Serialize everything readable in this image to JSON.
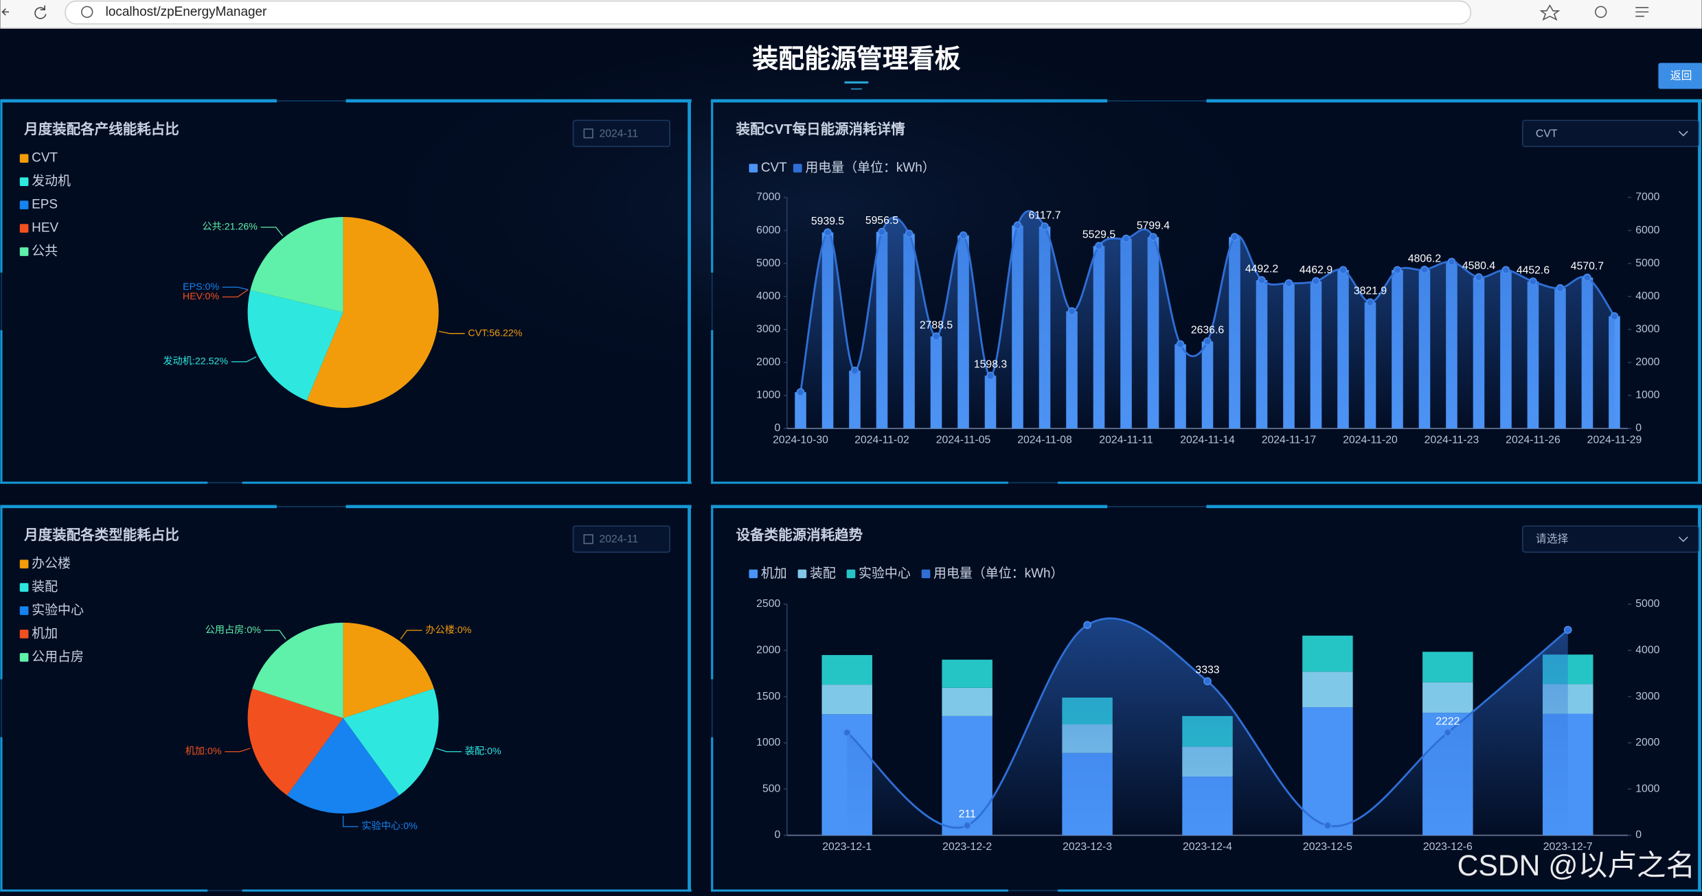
{
  "browser": {
    "url": "localhost/zpEnergyManager"
  },
  "header": {
    "title": "装配能源管理看板",
    "back_button": "返回"
  },
  "watermark": "CSDN @以卢之名",
  "chart_data": [
    {
      "type": "pie",
      "title": "月度装配各产线能耗占比",
      "date": "2024-11",
      "categories": [
        "CVT",
        "发动机",
        "EPS",
        "HEV",
        "公共"
      ],
      "values": [
        56.22,
        22.52,
        0,
        0,
        21.26
      ],
      "value_labels": [
        "CVT:56.22%",
        "发动机:22.52%",
        "EPS:0%",
        "HEV:0%",
        "公共:21.26%"
      ],
      "colors": [
        "#f39c0b",
        "#2ee8df",
        "#1683f0",
        "#f2511f",
        "#5ff0a9"
      ]
    },
    {
      "type": "combo",
      "title": "装配CVT每日能源消耗详情",
      "select": "CVT",
      "categories": [
        "2024-10-30",
        null,
        null,
        "2024-11-02",
        null,
        null,
        "2024-11-05",
        null,
        null,
        "2024-11-08",
        null,
        null,
        "2024-11-11",
        null,
        null,
        "2024-11-14",
        null,
        null,
        "2024-11-17",
        null,
        null,
        "2024-11-20",
        null,
        null,
        "2024-11-23",
        null,
        null,
        "2024-11-26",
        null,
        null,
        "2024-11-29"
      ],
      "series": [
        {
          "name": "CVT",
          "type": "bar",
          "color": "#4d94f5",
          "values": [
            1100,
            5939.5,
            1750,
            5956.5,
            5900,
            2788.5,
            5850,
            1598.3,
            6150,
            6117.7,
            3550,
            5529.5,
            5750,
            5799.4,
            2550,
            2636.6,
            5800,
            4492.2,
            4400,
            4462.9,
            4800,
            3821.9,
            4800,
            4806.2,
            5050,
            4580.4,
            4800,
            4452.6,
            4250,
            4570.7,
            3400
          ]
        },
        {
          "name": "用电量（单位：kWh）",
          "type": "line",
          "axis": "y2",
          "color": "#2f6fd6",
          "values": [
            1100,
            5939.5,
            1750,
            5956.5,
            5900,
            2788.5,
            5850,
            1598.3,
            6150,
            6117.7,
            3550,
            5529.5,
            5750,
            5799.4,
            2550,
            2636.6,
            5800,
            4492.2,
            4400,
            4462.9,
            4800,
            3821.9,
            4800,
            4806.2,
            5050,
            4580.4,
            4800,
            4452.6,
            4250,
            4570.7,
            3400
          ],
          "value_labels": [
            null,
            "5939.5",
            null,
            "5956.5",
            null,
            "2788.5",
            null,
            "1598.3",
            null,
            "6117.7",
            null,
            "5529.5",
            null,
            "5799.4",
            null,
            "2636.6",
            null,
            "4492.2",
            null,
            "4462.9",
            null,
            "3821.9",
            null,
            "4806.2",
            null,
            "4580.4",
            null,
            "4452.6",
            null,
            "4570.7",
            null
          ]
        }
      ],
      "ylim": [
        0,
        7000
      ],
      "yticks": [
        0,
        1000,
        2000,
        3000,
        4000,
        5000,
        6000,
        7000
      ],
      "y2lim": [
        0,
        7000
      ],
      "y2ticks": [
        0,
        1000,
        2000,
        3000,
        4000,
        5000,
        6000,
        7000
      ]
    },
    {
      "type": "pie",
      "title": "月度装配各类型能耗占比",
      "date": "2024-11",
      "categories": [
        "办公楼",
        "装配",
        "实验中心",
        "机加",
        "公用占房"
      ],
      "values": [
        0,
        0,
        0,
        0,
        0
      ],
      "value_labels": [
        "办公楼:0%",
        "装配:0%",
        "实验中心:0%",
        "机加:0%",
        "公用占房:0%"
      ],
      "colors": [
        "#f39c0b",
        "#2ee8df",
        "#1683f0",
        "#f2511f",
        "#5ff0a9"
      ]
    },
    {
      "type": "combo",
      "title": "设备类能源消耗趋势",
      "select": "请选择",
      "stacked": true,
      "categories": [
        "2023-12-1",
        "2023-12-2",
        "2023-12-3",
        "2023-12-4",
        "2023-12-5",
        "2023-12-6",
        "2023-12-7"
      ],
      "series": [
        {
          "name": "机加",
          "type": "bar",
          "color": "#4a94f7",
          "values": [
            1310,
            1290,
            890,
            635,
            1385,
            1325,
            1315
          ]
        },
        {
          "name": "装配",
          "type": "bar",
          "color": "#80c8e8",
          "values": [
            320,
            305,
            310,
            325,
            385,
            330,
            320
          ]
        },
        {
          "name": "实验中心",
          "type": "bar",
          "color": "#25c5c5",
          "values": [
            320,
            305,
            290,
            330,
            390,
            330,
            320
          ]
        },
        {
          "name": "用电量（单位：kWh）",
          "type": "line",
          "axis": "y2",
          "color": "#2f6fd6",
          "values": [
            2222,
            211,
            4550,
            3333,
            211,
            2222,
            4444
          ],
          "value_labels": [
            null,
            "211",
            null,
            "3333",
            null,
            "2222",
            null
          ]
        }
      ],
      "ylim": [
        0,
        2500
      ],
      "yticks": [
        0,
        500,
        1000,
        1500,
        2000,
        2500
      ],
      "y2lim": [
        0,
        5000
      ],
      "y2ticks": [
        0,
        1000,
        2000,
        3000,
        4000,
        5000
      ]
    }
  ]
}
